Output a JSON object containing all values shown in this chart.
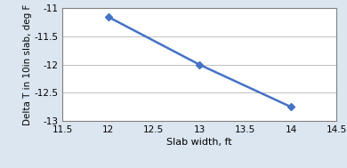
{
  "x": [
    12,
    13,
    14
  ],
  "y": [
    -11.15,
    -12.0,
    -12.75
  ],
  "xlim": [
    11.5,
    14.5
  ],
  "ylim": [
    -13,
    -11
  ],
  "xticks": [
    11.5,
    12.0,
    12.5,
    13.0,
    13.5,
    14.0,
    14.5
  ],
  "yticks": [
    -13,
    -12.5,
    -12,
    -11.5,
    -11
  ],
  "xlabel": "Slab width, ft",
  "ylabel": "Delta T in 10in slab, deg F",
  "line_color": "#4472C4",
  "marker": "D",
  "markersize": 4,
  "linewidth": 1.8,
  "background_color": "#ffffff",
  "fig_background": "#dce6f1",
  "grid_color": "#c0c0c0",
  "spine_color": "#808080",
  "xlabel_fontsize": 8,
  "ylabel_fontsize": 7.5,
  "tick_fontsize": 7.5
}
